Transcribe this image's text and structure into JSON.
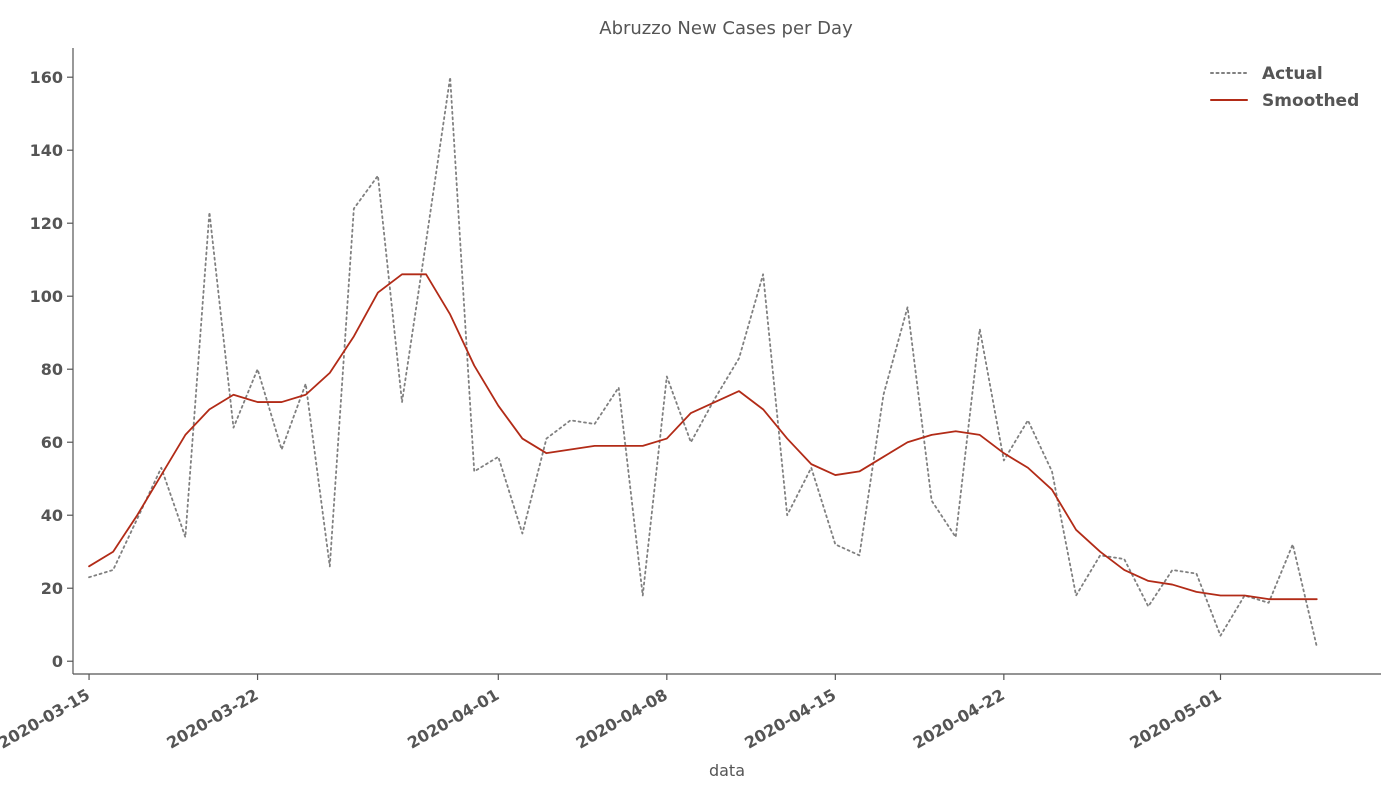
{
  "chart_data": {
    "type": "line",
    "title": "Abruzzo New Cases per Day",
    "xlabel": "data",
    "ylabel": "",
    "ylim": [
      -3.5,
      168
    ],
    "xlim": [
      "2020-03-14T08:00",
      "2020-05-07T16:00"
    ],
    "grid": false,
    "legend_position": "top-right",
    "colors": {
      "actual": "#808080",
      "smoothed": "#b22b17",
      "axis": "#555555",
      "text": "#555555"
    },
    "x_ticks": [
      "2020-03-15",
      "2020-03-22",
      "2020-04-01",
      "2020-04-08",
      "2020-04-15",
      "2020-04-22",
      "2020-05-01"
    ],
    "y_ticks": [
      0,
      20,
      40,
      60,
      80,
      100,
      120,
      140,
      160
    ],
    "x": [
      "2020-03-15",
      "2020-03-16",
      "2020-03-17",
      "2020-03-18",
      "2020-03-19",
      "2020-03-20",
      "2020-03-21",
      "2020-03-22",
      "2020-03-23",
      "2020-03-24",
      "2020-03-25",
      "2020-03-26",
      "2020-03-27",
      "2020-03-28",
      "2020-03-29",
      "2020-03-30",
      "2020-03-31",
      "2020-04-01",
      "2020-04-02",
      "2020-04-03",
      "2020-04-04",
      "2020-04-05",
      "2020-04-06",
      "2020-04-07",
      "2020-04-08",
      "2020-04-09",
      "2020-04-10",
      "2020-04-11",
      "2020-04-12",
      "2020-04-13",
      "2020-04-14",
      "2020-04-15",
      "2020-04-16",
      "2020-04-17",
      "2020-04-18",
      "2020-04-19",
      "2020-04-20",
      "2020-04-21",
      "2020-04-22",
      "2020-04-23",
      "2020-04-24",
      "2020-04-25",
      "2020-04-26",
      "2020-04-27",
      "2020-04-28",
      "2020-04-29",
      "2020-04-30",
      "2020-05-01",
      "2020-05-02",
      "2020-05-03",
      "2020-05-04",
      "2020-05-05"
    ],
    "series": [
      {
        "name": "Actual",
        "style": "dotted",
        "values": [
          23,
          25,
          39,
          53,
          34,
          123,
          64,
          80,
          58,
          76,
          26,
          124,
          133,
          71,
          115,
          160,
          52,
          56,
          35,
          61,
          66,
          65,
          75,
          18,
          78,
          60,
          72,
          83,
          106,
          40,
          53,
          32,
          29,
          73,
          97,
          44,
          34,
          91,
          55,
          66,
          52,
          18,
          29,
          28,
          15,
          25,
          24,
          7,
          18,
          16,
          32,
          4
        ]
      },
      {
        "name": "Smoothed",
        "style": "solid",
        "values": [
          26,
          30,
          40,
          51,
          62,
          69,
          73,
          71,
          71,
          73,
          79,
          89,
          101,
          106,
          106,
          95,
          81,
          70,
          61,
          57,
          58,
          59,
          59,
          59,
          61,
          68,
          71,
          74,
          69,
          61,
          54,
          51,
          52,
          56,
          60,
          62,
          63,
          62,
          57,
          53,
          47,
          36,
          30,
          25,
          22,
          21,
          19,
          18,
          18,
          17,
          17,
          17
        ]
      }
    ]
  }
}
